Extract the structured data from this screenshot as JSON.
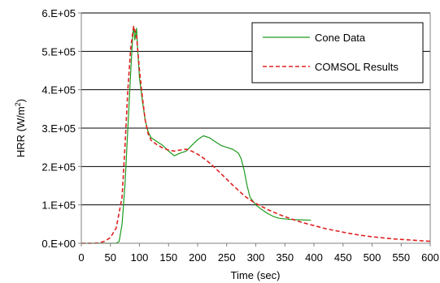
{
  "chart_data": {
    "type": "line",
    "xlabel": "Time (sec)",
    "ylabel": "HRR (W/m2)",
    "ylabel_parts": {
      "main": "HRR (W/m",
      "sup": "2",
      "close": ")"
    },
    "xlim": [
      0,
      600
    ],
    "ylim": [
      0,
      600000
    ],
    "grid": "horizontal",
    "legend_position": "top-right",
    "x_ticks": [
      0,
      50,
      100,
      150,
      200,
      250,
      300,
      350,
      400,
      450,
      500,
      550,
      600
    ],
    "x_tick_labels": [
      "0",
      "50",
      "100",
      "150",
      "200",
      "250",
      "300",
      "350",
      "400",
      "450",
      "500",
      "550",
      "600"
    ],
    "y_ticks": [
      0,
      100000,
      200000,
      300000,
      400000,
      500000,
      600000
    ],
    "y_tick_labels": [
      "0.E+00",
      "1.E+05",
      "2.E+05",
      "3.E+05",
      "4.E+05",
      "5.E+05",
      "6.E+05"
    ],
    "series": [
      {
        "name": "Cone Data",
        "color": "#1e9a1e",
        "style": "solid",
        "points": [
          [
            0,
            0
          ],
          [
            40,
            0
          ],
          [
            60,
            0
          ],
          [
            65,
            5000
          ],
          [
            70,
            50000
          ],
          [
            75,
            150000
          ],
          [
            80,
            300000
          ],
          [
            85,
            450000
          ],
          [
            88,
            530000
          ],
          [
            90,
            565000
          ],
          [
            92,
            530000
          ],
          [
            95,
            560000
          ],
          [
            97,
            500000
          ],
          [
            100,
            430000
          ],
          [
            105,
            370000
          ],
          [
            110,
            320000
          ],
          [
            115,
            290000
          ],
          [
            120,
            275000
          ],
          [
            130,
            265000
          ],
          [
            140,
            255000
          ],
          [
            150,
            240000
          ],
          [
            160,
            228000
          ],
          [
            170,
            235000
          ],
          [
            180,
            240000
          ],
          [
            190,
            255000
          ],
          [
            200,
            270000
          ],
          [
            210,
            280000
          ],
          [
            220,
            275000
          ],
          [
            230,
            265000
          ],
          [
            240,
            255000
          ],
          [
            250,
            250000
          ],
          [
            260,
            245000
          ],
          [
            270,
            235000
          ],
          [
            275,
            220000
          ],
          [
            280,
            190000
          ],
          [
            285,
            150000
          ],
          [
            290,
            120000
          ],
          [
            300,
            100000
          ],
          [
            310,
            88000
          ],
          [
            320,
            78000
          ],
          [
            330,
            70000
          ],
          [
            340,
            65000
          ],
          [
            360,
            62000
          ],
          [
            380,
            61000
          ],
          [
            395,
            60000
          ]
        ]
      },
      {
        "name": "COMSOL Results",
        "color": "#e02020",
        "style": "dashed",
        "points": [
          [
            0,
            0
          ],
          [
            20,
            0
          ],
          [
            30,
            1000
          ],
          [
            40,
            5000
          ],
          [
            50,
            15000
          ],
          [
            60,
            40000
          ],
          [
            70,
            120000
          ],
          [
            75,
            250000
          ],
          [
            80,
            400000
          ],
          [
            85,
            510000
          ],
          [
            90,
            565000
          ],
          [
            95,
            540000
          ],
          [
            100,
            450000
          ],
          [
            105,
            380000
          ],
          [
            110,
            320000
          ],
          [
            115,
            285000
          ],
          [
            120,
            268000
          ],
          [
            130,
            257000
          ],
          [
            140,
            248000
          ],
          [
            150,
            243000
          ],
          [
            160,
            240000
          ],
          [
            170,
            243000
          ],
          [
            180,
            245000
          ],
          [
            190,
            240000
          ],
          [
            200,
            232000
          ],
          [
            210,
            222000
          ],
          [
            220,
            210000
          ],
          [
            230,
            196000
          ],
          [
            240,
            182000
          ],
          [
            250,
            167000
          ],
          [
            260,
            152000
          ],
          [
            270,
            138000
          ],
          [
            280,
            124000
          ],
          [
            290,
            113000
          ],
          [
            300,
            104000
          ],
          [
            320,
            88000
          ],
          [
            340,
            75000
          ],
          [
            360,
            64000
          ],
          [
            380,
            54000
          ],
          [
            400,
            46000
          ],
          [
            420,
            38000
          ],
          [
            440,
            32000
          ],
          [
            460,
            26000
          ],
          [
            480,
            21000
          ],
          [
            500,
            17000
          ],
          [
            520,
            14000
          ],
          [
            540,
            11000
          ],
          [
            560,
            9000
          ],
          [
            580,
            7000
          ],
          [
            600,
            5000
          ]
        ]
      }
    ]
  }
}
